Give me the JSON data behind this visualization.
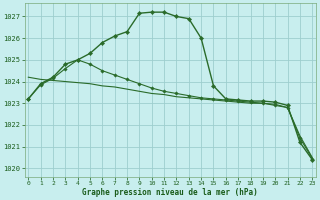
{
  "line1": {
    "x": [
      0,
      1,
      2,
      3,
      4,
      5,
      6,
      7,
      8,
      9,
      10,
      11,
      12,
      13,
      14,
      15,
      16,
      17,
      18,
      19,
      20,
      21,
      22,
      23
    ],
    "y": [
      1023.2,
      1023.9,
      1024.2,
      1024.8,
      1025.0,
      1025.3,
      1025.8,
      1026.1,
      1026.3,
      1027.15,
      1027.2,
      1027.2,
      1027.0,
      1026.9,
      1026.0,
      1023.8,
      1023.2,
      1023.15,
      1023.1,
      1023.1,
      1023.05,
      1022.9,
      1021.2,
      1020.4
    ],
    "color": "#2a6b2a",
    "marker": "D",
    "markersize": 2.2,
    "linewidth": 1.0
  },
  "line2": {
    "x": [
      0,
      1,
      2,
      3,
      4,
      5,
      6,
      7,
      8,
      9,
      10,
      11,
      12,
      13,
      14,
      15,
      16,
      17,
      18,
      19,
      20,
      21,
      22,
      23
    ],
    "y": [
      1024.2,
      1024.1,
      1024.05,
      1024.0,
      1023.95,
      1023.9,
      1023.8,
      1023.75,
      1023.65,
      1023.55,
      1023.45,
      1023.4,
      1023.3,
      1023.25,
      1023.2,
      1023.15,
      1023.1,
      1023.05,
      1023.0,
      1023.0,
      1022.95,
      1022.8,
      1021.5,
      1020.5
    ],
    "color": "#2a6b2a",
    "marker": null,
    "markersize": 0,
    "linewidth": 0.8
  },
  "line3": {
    "x": [
      0,
      1,
      2,
      3,
      4,
      5,
      6,
      7,
      8,
      9,
      10,
      11,
      12,
      13,
      14,
      15,
      16,
      17,
      18,
      19,
      20,
      21,
      22,
      23
    ],
    "y": [
      1023.2,
      1023.85,
      1024.15,
      1024.6,
      1025.0,
      1024.8,
      1024.5,
      1024.3,
      1024.1,
      1023.9,
      1023.7,
      1023.55,
      1023.45,
      1023.35,
      1023.25,
      1023.2,
      1023.15,
      1023.1,
      1023.05,
      1023.0,
      1022.9,
      1022.8,
      1021.4,
      1020.45
    ],
    "color": "#2a6b2a",
    "marker": "D",
    "markersize": 1.8,
    "linewidth": 0.8
  },
  "background_color": "#c8eeee",
  "grid_color": "#9ecece",
  "text_color": "#1a5c1a",
  "xlabel": "Graphe pression niveau de la mer (hPa)",
  "ylim": [
    1019.6,
    1027.6
  ],
  "xlim": [
    -0.3,
    23.3
  ],
  "yticks": [
    1020,
    1021,
    1022,
    1023,
    1024,
    1025,
    1026,
    1027
  ],
  "xticks": [
    0,
    1,
    2,
    3,
    4,
    5,
    6,
    7,
    8,
    9,
    10,
    11,
    12,
    13,
    14,
    15,
    16,
    17,
    18,
    19,
    20,
    21,
    22,
    23
  ]
}
